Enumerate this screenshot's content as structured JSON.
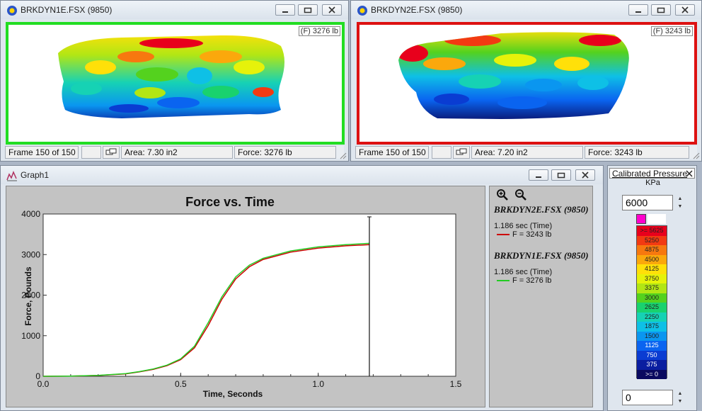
{
  "windows": [
    {
      "title": "BRKDYN1E.FSX (9850)",
      "force_tag": "(F) 3276 lb",
      "border_color": "#22dd22",
      "frame": "Frame 150 of 150",
      "area": "Area: 7.30 in2",
      "force": "Force: 3276 lb"
    },
    {
      "title": "BRKDYN2E.FSX (9850)",
      "force_tag": "(F) 3243 lb",
      "border_color": "#dd1111",
      "frame": "Frame 150 of 150",
      "area": "Area: 7.20 in2",
      "force": "Force: 3243 lb"
    }
  ],
  "graph_window": {
    "title": "Graph1",
    "legend": [
      {
        "file": "BRKDYN2E.FSX (9850)",
        "time": "1.186 sec (Time)",
        "value": "F = 3243 lb",
        "color": "#cc0000"
      },
      {
        "file": "BRKDYN1E.FSX (9850)",
        "time": "1.186 sec (Time)",
        "value": "F = 3276 lb",
        "color": "#22cc22"
      }
    ]
  },
  "calibration": {
    "title": "Calibrated Pressure",
    "unit": "KPa",
    "max_value": "6000",
    "min_value": "0",
    "max_swatch_color": "#ff00cc",
    "levels": [
      {
        "label": ">= 5625",
        "color": "#e8001c"
      },
      {
        "label": "5250",
        "color": "#f23a12"
      },
      {
        "label": "4875",
        "color": "#f7780f"
      },
      {
        "label": "4500",
        "color": "#fba80c"
      },
      {
        "label": "4125",
        "color": "#ffe009"
      },
      {
        "label": "3750",
        "color": "#e6f20a"
      },
      {
        "label": "3375",
        "color": "#b2e614"
      },
      {
        "label": "3000",
        "color": "#54d21e"
      },
      {
        "label": "2625",
        "color": "#19d26e"
      },
      {
        "label": "2250",
        "color": "#16d2b4"
      },
      {
        "label": "1875",
        "color": "#0ec0e6"
      },
      {
        "label": "1500",
        "color": "#0a96f0"
      },
      {
        "label": "1125",
        "color": "#0a64f0"
      },
      {
        "label": "750",
        "color": "#0a3cd2"
      },
      {
        "label": "375",
        "color": "#0a1ea0"
      },
      {
        "label": ">= 0",
        "color": "#0a0a60"
      }
    ]
  },
  "chart_data": {
    "type": "line",
    "title": "Force vs. Time",
    "xlabel": "Time, Seconds",
    "ylabel": "Force, Pounds",
    "xlim": [
      0,
      1.5
    ],
    "ylim": [
      0,
      4000
    ],
    "xticks": [
      "0.0",
      "0.5",
      "1.0",
      "1.5"
    ],
    "yticks": [
      "0",
      "1000",
      "2000",
      "3000",
      "4000"
    ],
    "cursor_x": 1.186,
    "series": [
      {
        "name": "BRKDYN2E.FSX (9850)",
        "color": "#cc0000",
        "x": [
          0,
          0.1,
          0.2,
          0.3,
          0.35,
          0.4,
          0.45,
          0.5,
          0.55,
          0.6,
          0.65,
          0.7,
          0.75,
          0.8,
          0.9,
          1.0,
          1.1,
          1.186
        ],
        "y": [
          0,
          5,
          20,
          60,
          110,
          170,
          260,
          410,
          700,
          1250,
          1900,
          2400,
          2700,
          2880,
          3060,
          3160,
          3215,
          3243
        ]
      },
      {
        "name": "BRKDYN1E.FSX (9850)",
        "color": "#22cc22",
        "x": [
          0,
          0.1,
          0.2,
          0.3,
          0.35,
          0.4,
          0.45,
          0.5,
          0.55,
          0.6,
          0.65,
          0.7,
          0.75,
          0.8,
          0.9,
          1.0,
          1.1,
          1.186
        ],
        "y": [
          0,
          5,
          22,
          65,
          115,
          180,
          275,
          430,
          740,
          1320,
          1960,
          2450,
          2740,
          2910,
          3090,
          3190,
          3245,
          3276
        ]
      }
    ]
  }
}
